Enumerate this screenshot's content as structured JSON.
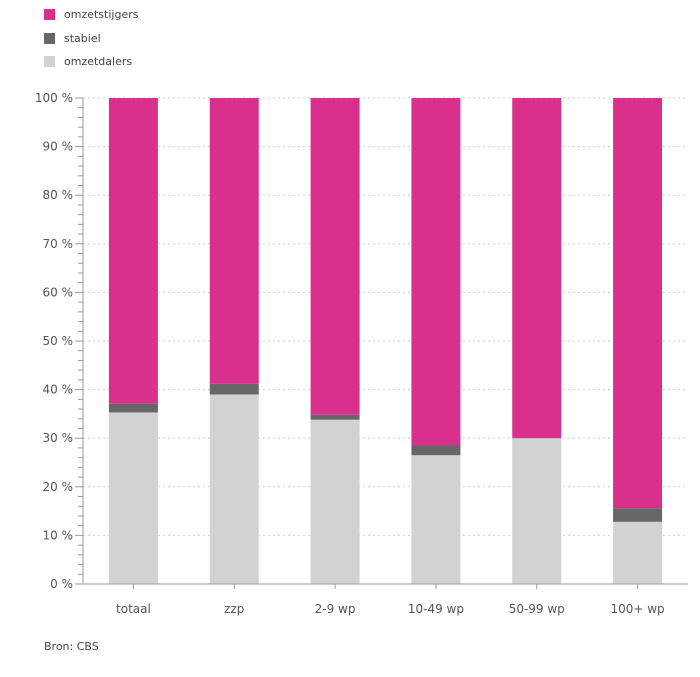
{
  "legend": {
    "items": [
      {
        "label": "omzetstijgers",
        "color": "#d8308c"
      },
      {
        "label": "stabiel",
        "color": "#666666"
      },
      {
        "label": "omzetdalers",
        "color": "#d2d2d4"
      }
    ]
  },
  "source": "Bron: CBS",
  "chart_data": {
    "type": "bar",
    "stacked": true,
    "categories": [
      "totaal",
      "zzp",
      "2-9 wp",
      "10-49 wp",
      "50-99 wp",
      "100+ wp"
    ],
    "series": [
      {
        "name": "omzetdalers",
        "color": "#d2d2d4",
        "values": [
          35.3,
          39.0,
          33.8,
          26.5,
          30.0,
          12.8
        ]
      },
      {
        "name": "stabiel",
        "color": "#666666",
        "values": [
          1.8,
          2.2,
          1.0,
          2.0,
          0.0,
          2.8
        ]
      },
      {
        "name": "omzetstijgers",
        "color": "#d8308c",
        "values": [
          62.9,
          58.8,
          65.2,
          71.5,
          70.0,
          84.4
        ]
      }
    ],
    "y_ticks": [
      "0 %",
      "10 %",
      "20 %",
      "30 %",
      "40 %",
      "50 %",
      "60 %",
      "70 %",
      "80 %",
      "90 %",
      "100 %"
    ],
    "ylim": [
      0,
      100
    ],
    "grid": true,
    "legend_position": "top-left",
    "title": "",
    "xlabel": "",
    "ylabel": ""
  }
}
